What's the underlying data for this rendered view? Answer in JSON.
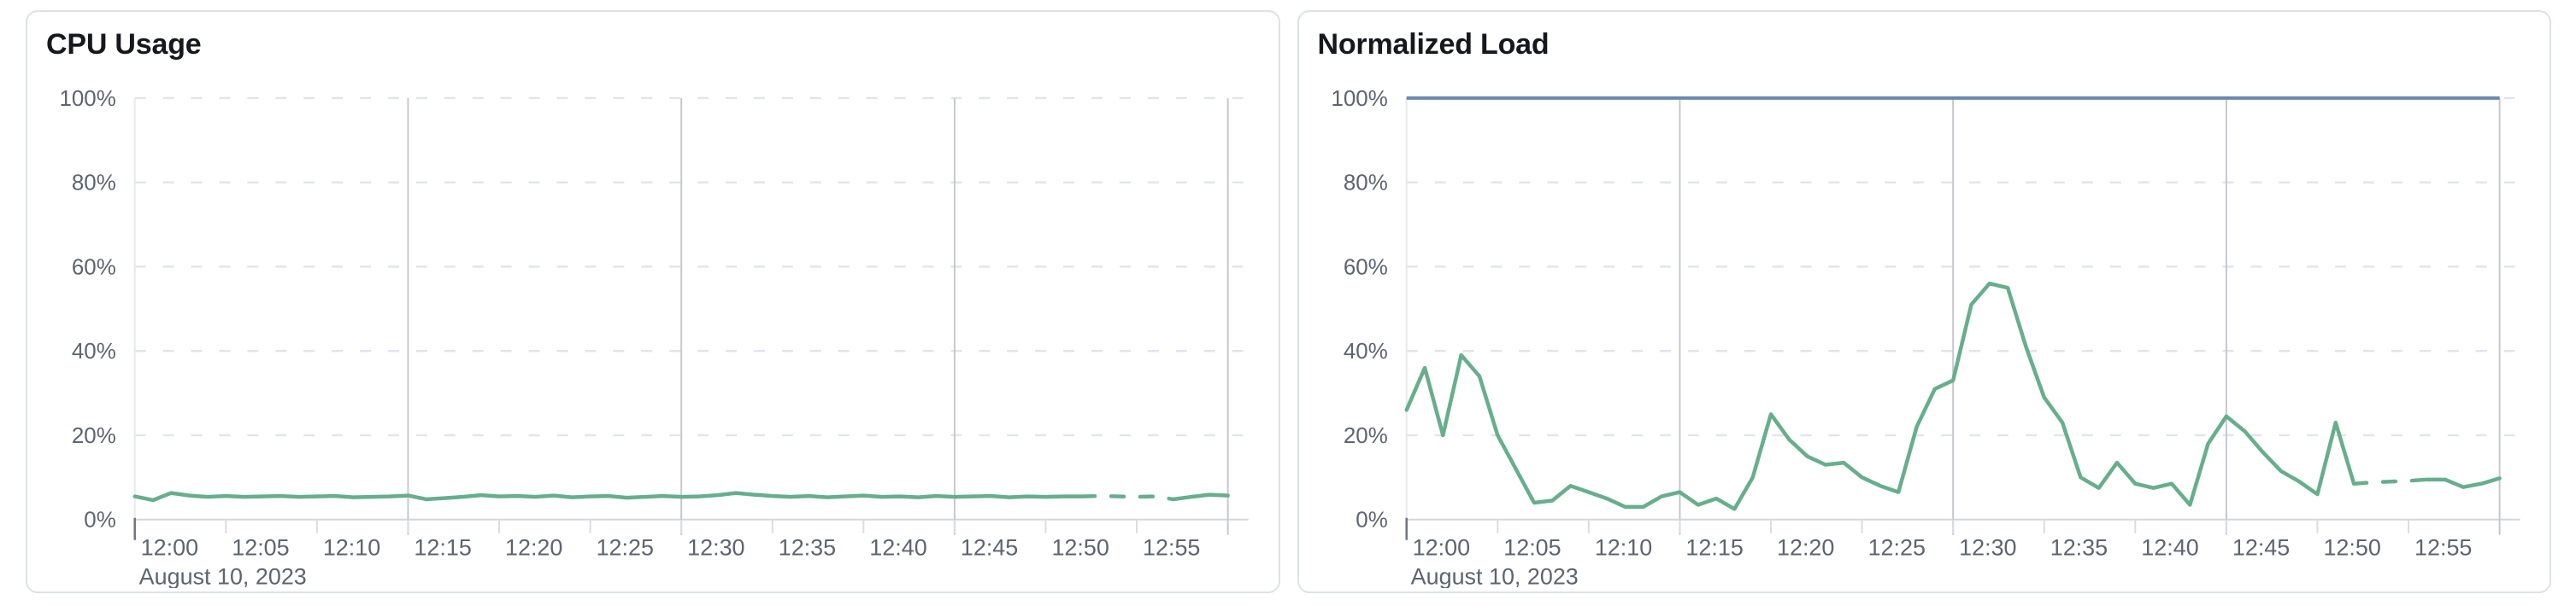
{
  "page": {
    "background": "#ffffff"
  },
  "chart_data": [
    {
      "type": "line",
      "title": "CPU Usage",
      "xlabel": "",
      "ylabel": "",
      "x_axis": {
        "date_label": "August 10, 2023",
        "tick_labels": [
          "12:00",
          "12:05",
          "12:10",
          "12:15",
          "12:20",
          "12:25",
          "12:30",
          "12:35",
          "12:40",
          "12:45",
          "12:50",
          "12:55"
        ],
        "tick_minutes": [
          0,
          5,
          10,
          15,
          20,
          25,
          30,
          35,
          40,
          45,
          50,
          55
        ],
        "domain_minutes": [
          0,
          60
        ],
        "solid_gridline_minutes": [
          15,
          30,
          45,
          60
        ]
      },
      "y_axis": {
        "tick_labels": [
          "0%",
          "20%",
          "40%",
          "60%",
          "80%",
          "100%"
        ],
        "tick_values": [
          0,
          20,
          40,
          60,
          80,
          100
        ],
        "ylim": [
          0,
          100
        ],
        "grid": "dashed"
      },
      "series": [
        {
          "name": "CPU Usage",
          "color": "#67ae8c",
          "x_step_minutes": 1,
          "values": [
            5.5,
            4.6,
            6.3,
            5.7,
            5.4,
            5.6,
            5.4,
            5.5,
            5.6,
            5.4,
            5.5,
            5.6,
            5.3,
            5.4,
            5.5,
            5.7,
            4.8,
            5.1,
            5.4,
            5.8,
            5.5,
            5.6,
            5.4,
            5.7,
            5.3,
            5.5,
            5.6,
            5.2,
            5.4,
            5.6,
            5.4,
            5.5,
            5.8,
            6.3,
            5.9,
            5.6,
            5.4,
            5.6,
            5.3,
            5.5,
            5.7,
            5.4,
            5.5,
            5.3,
            5.6,
            5.4,
            5.5,
            5.6,
            5.3,
            5.5,
            5.4,
            5.5,
            5.5,
            5.6,
            5.5,
            5.4,
            5.5,
            4.8,
            5.4,
            5.9,
            5.7
          ],
          "dashed_from_minute": 52,
          "dashed_to_minute": 57
        }
      ],
      "limit_line": null
    },
    {
      "type": "line",
      "title": "Normalized Load",
      "xlabel": "",
      "ylabel": "",
      "x_axis": {
        "date_label": "August 10, 2023",
        "tick_labels": [
          "12:00",
          "12:05",
          "12:10",
          "12:15",
          "12:20",
          "12:25",
          "12:30",
          "12:35",
          "12:40",
          "12:45",
          "12:50",
          "12:55"
        ],
        "tick_minutes": [
          0,
          5,
          10,
          15,
          20,
          25,
          30,
          35,
          40,
          45,
          50,
          55
        ],
        "domain_minutes": [
          0,
          60
        ],
        "solid_gridline_minutes": [
          15,
          30,
          45,
          60
        ]
      },
      "y_axis": {
        "tick_labels": [
          "0%",
          "20%",
          "40%",
          "60%",
          "80%",
          "100%"
        ],
        "tick_values": [
          0,
          20,
          40,
          60,
          80,
          100
        ],
        "ylim": [
          0,
          100
        ],
        "grid": "dashed"
      },
      "series": [
        {
          "name": "Normalized Load",
          "color": "#67ae8c",
          "x_step_minutes": 1,
          "values": [
            26,
            36,
            20,
            39,
            34,
            20,
            12,
            4,
            4.5,
            8,
            6.5,
            5,
            3,
            3,
            5.5,
            6.5,
            3.5,
            5,
            2.5,
            10,
            25,
            19,
            15,
            13,
            13.5,
            10,
            8,
            6.5,
            22,
            31,
            33,
            51,
            56,
            55,
            41,
            29,
            23,
            10,
            7.5,
            13.5,
            8.5,
            7.5,
            8.5,
            3.5,
            18,
            24.5,
            21,
            16,
            11.5,
            9,
            6,
            23,
            8.5,
            8.8,
            9,
            9.2,
            9.5,
            9.5,
            7.7,
            8.5,
            9.8
          ],
          "dashed_from_minute": 52,
          "dashed_to_minute": 56
        }
      ],
      "limit_line": {
        "value": 100,
        "color": "#6a89af"
      }
    }
  ],
  "style_colors": {
    "series_green": "#67ae8c",
    "limit_blue": "#6a89af",
    "grid_dashed": "#e1e4ee",
    "grid_solid_vertical": "#c5c8cd",
    "axis_baseline": "#d2d5da",
    "tick_mark": "#d9dce1",
    "first_tick_mark": "#6e7582",
    "plot_left_edge": "#e7e9ed",
    "tick_text": "#5d6470",
    "title_text": "#16181d",
    "card_border": "#dde1ea"
  }
}
